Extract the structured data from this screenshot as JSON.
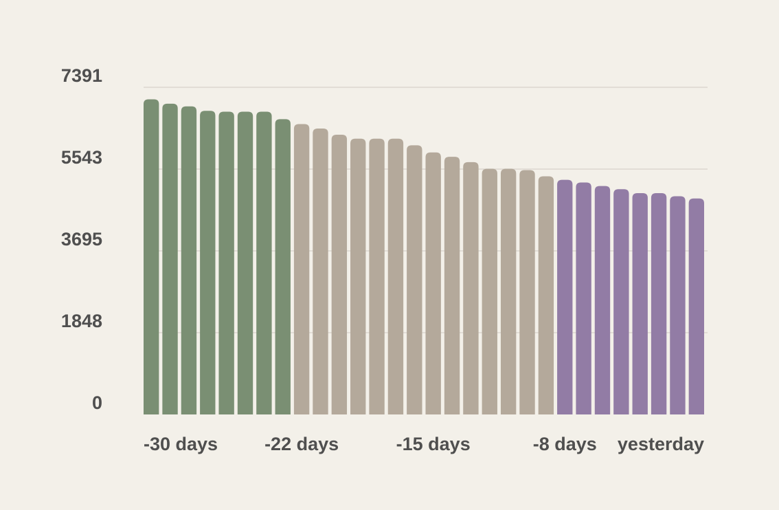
{
  "chart_data": {
    "type": "bar",
    "title": "",
    "xlabel": "",
    "ylabel": "",
    "ylim": [
      0,
      7391
    ],
    "y_ticks": [
      "0",
      "1848",
      "3695",
      "5543",
      "7391"
    ],
    "x_tick_labels": [
      {
        "index": 0,
        "label": "-30 days"
      },
      {
        "index": 8,
        "label": "-22 days"
      },
      {
        "index": 15,
        "label": "-15 days"
      },
      {
        "index": 22,
        "label": "-8 days"
      },
      {
        "index": 29,
        "label": "yesterday"
      }
    ],
    "grid": true,
    "colors": {
      "group_a": "#7a8f73",
      "group_b": "#b4a99b",
      "group_c": "#927ca5",
      "grid": "#e2ddd6",
      "text": "#4f4f4f",
      "background": "#f3f0e9"
    },
    "values": [
      7120,
      7020,
      6960,
      6860,
      6840,
      6840,
      6840,
      6670,
      6560,
      6460,
      6320,
      6230,
      6230,
      6230,
      6080,
      5920,
      5820,
      5700,
      5550,
      5550,
      5520,
      5380,
      5300,
      5240,
      5160,
      5090,
      5000,
      5000,
      4930,
      4880
    ],
    "color_groups": [
      "group_a",
      "group_a",
      "group_a",
      "group_a",
      "group_a",
      "group_a",
      "group_a",
      "group_a",
      "group_b",
      "group_b",
      "group_b",
      "group_b",
      "group_b",
      "group_b",
      "group_b",
      "group_b",
      "group_b",
      "group_b",
      "group_b",
      "group_b",
      "group_b",
      "group_b",
      "group_c",
      "group_c",
      "group_c",
      "group_c",
      "group_c",
      "group_c",
      "group_c",
      "group_c"
    ]
  }
}
